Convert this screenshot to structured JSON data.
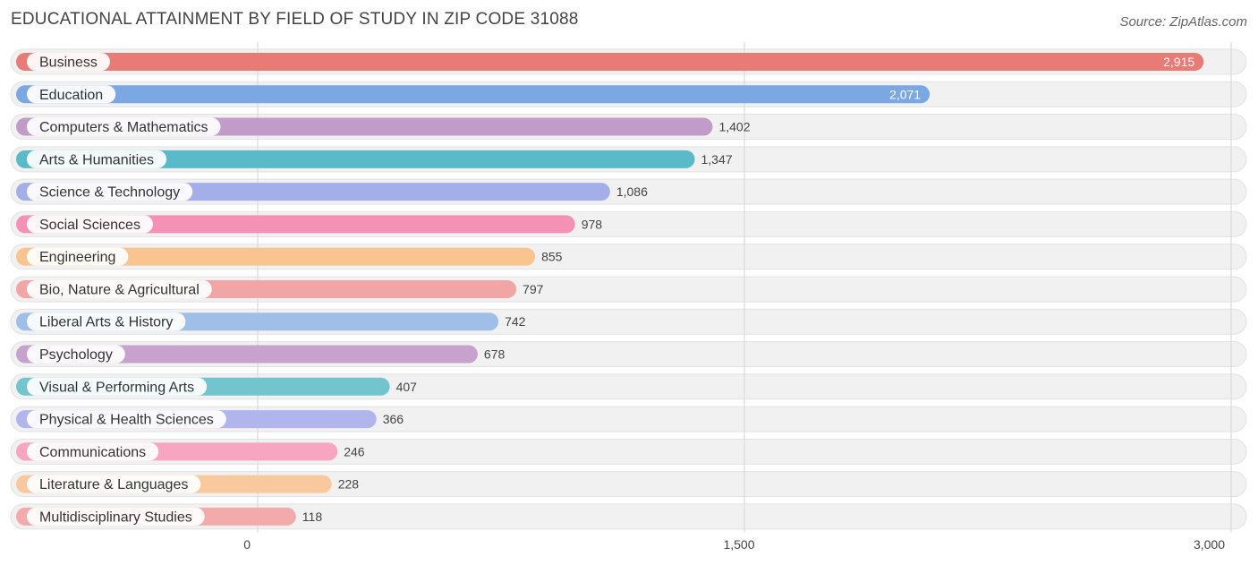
{
  "chart_data": {
    "type": "bar",
    "orientation": "horizontal",
    "title": "EDUCATIONAL ATTAINMENT BY FIELD OF STUDY IN ZIP CODE 31088",
    "source": "Source: ZipAtlas.com",
    "categories": [
      "Business",
      "Education",
      "Computers & Mathematics",
      "Arts & Humanities",
      "Science & Technology",
      "Social Sciences",
      "Engineering",
      "Bio, Nature & Agricultural",
      "Liberal Arts & History",
      "Psychology",
      "Visual & Performing Arts",
      "Physical & Health Sciences",
      "Communications",
      "Literature & Languages",
      "Multidisciplinary Studies"
    ],
    "values": [
      2915,
      2071,
      1402,
      1347,
      1086,
      978,
      855,
      797,
      742,
      678,
      407,
      366,
      246,
      228,
      118
    ],
    "value_labels": [
      "2,915",
      "2,071",
      "1,402",
      "1,347",
      "1,086",
      "978",
      "855",
      "797",
      "742",
      "678",
      "407",
      "366",
      "246",
      "228",
      "118"
    ],
    "colors": [
      "#e87b76",
      "#7ba8e3",
      "#c29cc9",
      "#5bbac7",
      "#a4aee9",
      "#f591b4",
      "#f9c48f",
      "#f2a5a5",
      "#9fbfe8",
      "#c6a2cd",
      "#72c5cc",
      "#b0b6ec",
      "#f7a5c0",
      "#f9c89c",
      "#f3aaaa"
    ],
    "xlim": [
      0,
      3000
    ],
    "ticks": [
      0,
      1500,
      3000
    ],
    "tick_labels": [
      "0",
      "1,500",
      "3,000"
    ],
    "xlabel": "",
    "ylabel": "",
    "grid": true
  }
}
